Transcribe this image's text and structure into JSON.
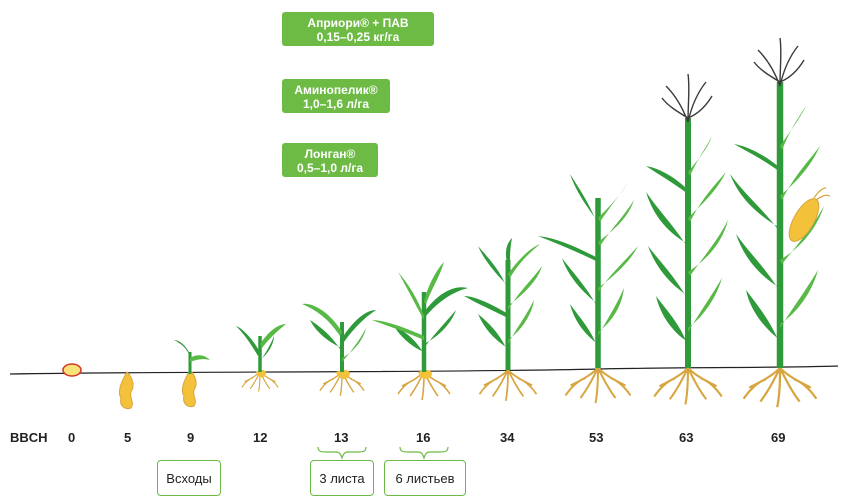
{
  "treatments": [
    {
      "name": "Априори® + ПАВ",
      "rate": "0,15–0,25 кг/га"
    },
    {
      "name": "Аминопелик®",
      "rate": "1,0–1,6 л/га"
    },
    {
      "name": "Лонган®",
      "rate": "0,5–1,0 л/га"
    }
  ],
  "scale_label": "BBCH",
  "stages": [
    "0",
    "5",
    "9",
    "12",
    "13",
    "16",
    "34",
    "53",
    "63",
    "69"
  ],
  "phase_labels": [
    "Всходы",
    "3 листа",
    "6 листьев"
  ],
  "colors": {
    "badge": "#6dbb45",
    "leaf": "#2f9a3a",
    "leaf_light": "#58b947",
    "root": "#d8a640",
    "seed": "#f3c13a"
  }
}
